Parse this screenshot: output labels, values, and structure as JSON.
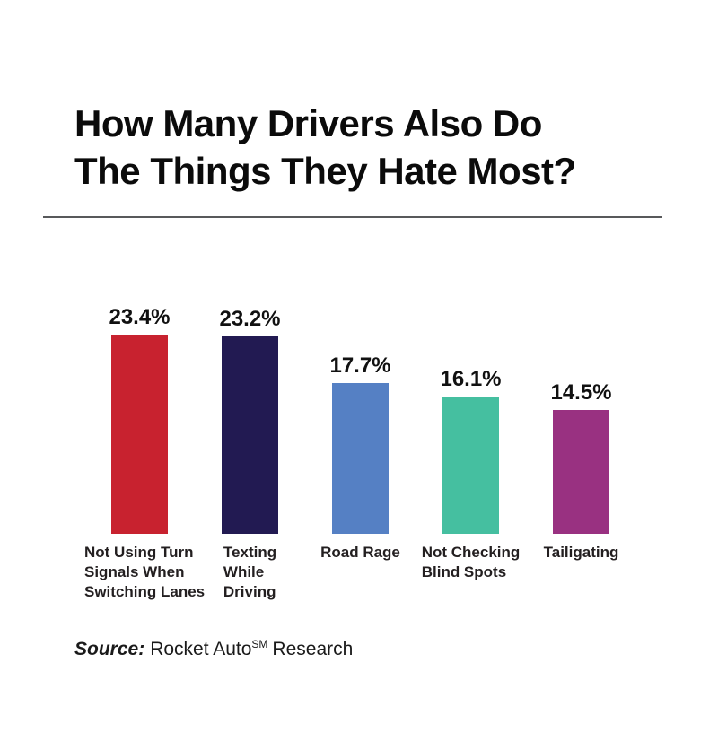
{
  "header": {
    "title_line1": "How Many Drivers Also Do",
    "title_line2": "The Things They Hate Most?"
  },
  "chart_data": {
    "type": "bar",
    "title": "How Many Drivers Also Do The Things They Hate Most?",
    "categories": [
      "Not Using Turn Signals When Switching Lanes",
      "Texting While Driving",
      "Road Rage",
      "Not Checking Blind Spots",
      "Tailigating"
    ],
    "category_lines": [
      [
        "Not Using Turn",
        "Signals When",
        "Switching Lanes"
      ],
      [
        "Texting",
        "While",
        "Driving"
      ],
      [
        "Road Rage"
      ],
      [
        "Not Checking",
        "Blind Spots"
      ],
      [
        "Tailigating"
      ]
    ],
    "values": [
      23.4,
      23.2,
      17.7,
      16.1,
      14.5
    ],
    "value_labels": [
      "23.4%",
      "23.2%",
      "17.7%",
      "16.1%",
      "14.5%"
    ],
    "bar_colors": [
      "#c8222f",
      "#221a52",
      "#5580c4",
      "#45bfa0",
      "#993181"
    ],
    "xlabel": "",
    "ylabel": "",
    "ylim": [
      0,
      25
    ],
    "grid": false,
    "legend": false,
    "axes_hidden": true
  },
  "source": {
    "label": "Source:",
    "brand": "Rocket Auto",
    "superscript": "SM",
    "suffix": "Research"
  },
  "style": {
    "divider_color": "#58595b",
    "title_color": "#0b0b0b",
    "label_color": "#231f20"
  }
}
